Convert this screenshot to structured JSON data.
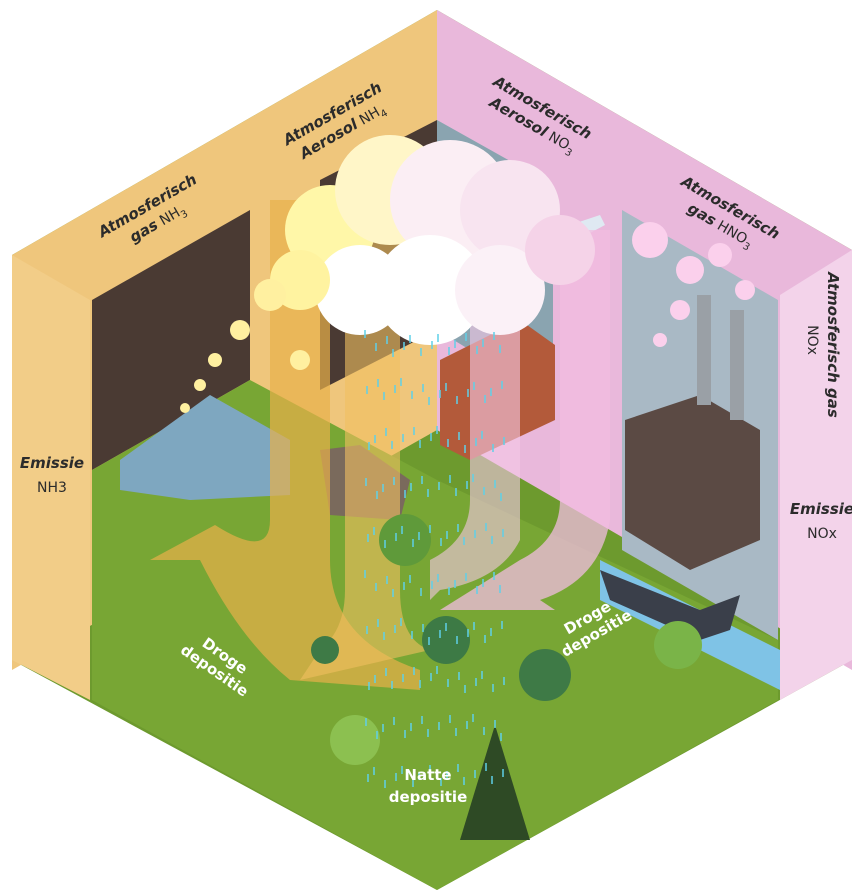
{
  "labels": {
    "emissie_nh3": {
      "title": "Emissie",
      "formula": "NH3"
    },
    "gas_nh3": {
      "line1": "Atmosferisch",
      "line2": "gas",
      "formula": "NH",
      "sub": "3"
    },
    "aerosol_nh4": {
      "line1": "Atmosferisch",
      "line2": "Aerosol",
      "formula": "NH",
      "sub": "4"
    },
    "aerosol_no3": {
      "line1": "Atmosferisch",
      "line2": "Aerosol",
      "formula": "NO",
      "sub": "3"
    },
    "gas_hno3": {
      "line1": "Atmosferisch",
      "line2": "gas",
      "formula": "HNO",
      "sub": "3"
    },
    "gas_nox": {
      "title": "Atmosferisch gas",
      "formula": "NOx"
    },
    "emissie_nox": {
      "title": "Emissie",
      "formula": "NOx"
    },
    "droge_links": {
      "line1": "Droge",
      "line2": "depositie"
    },
    "droge_rechts": {
      "line1": "Droge",
      "line2": "depositie"
    },
    "natte": {
      "line1": "Natte",
      "line2": "depositie"
    }
  }
}
